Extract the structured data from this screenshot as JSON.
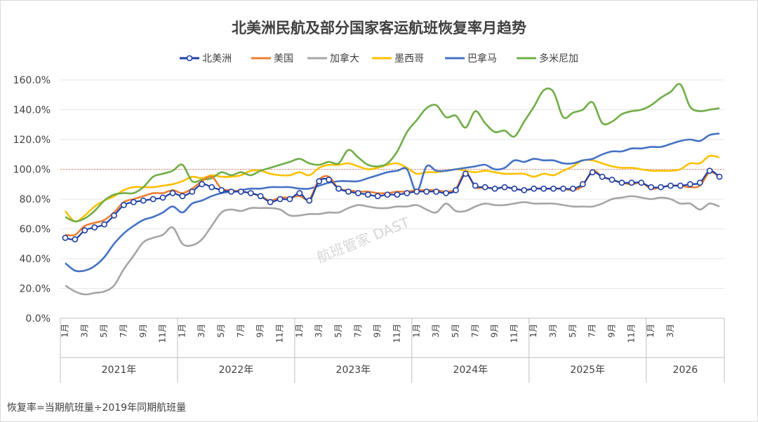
{
  "chart_data": {
    "type": "line",
    "title": "北美洲民航及部分国家客运航班恢复率月趋势",
    "footnote": "恢复率=当期航班量÷2019年同期航班量",
    "watermark": "航班管家 DAST",
    "y_ticks": [
      "160.0%",
      "140.0%",
      "120.0%",
      "100.0%",
      "80.0%",
      "60.0%",
      "40.0%",
      "20.0%",
      "0.0%"
    ],
    "ylim": [
      0,
      160
    ],
    "reference_line": 100,
    "month_labels": [
      "1月",
      "3月",
      "5月",
      "7月",
      "9月",
      "11月"
    ],
    "month_labels_2026": [
      "1月",
      "3月"
    ],
    "years": [
      "2021年",
      "2022年",
      "2023年",
      "2024年",
      "2025年",
      "2026"
    ],
    "series": [
      {
        "name": "北美洲",
        "color": "#1f3fa6",
        "markers": true,
        "values": [
          54,
          53,
          59,
          61,
          63,
          69,
          76,
          78,
          79,
          80,
          81,
          84,
          82,
          85,
          90,
          88,
          86,
          85,
          85,
          84,
          82,
          78,
          80,
          80,
          84,
          79,
          92,
          93,
          87,
          85,
          84,
          83,
          82,
          83,
          83,
          84,
          85,
          85,
          85,
          84,
          86,
          97,
          89,
          88,
          87,
          88,
          87,
          86,
          87,
          87,
          87,
          87,
          87,
          90,
          98,
          95,
          93,
          91,
          91,
          91,
          88,
          88,
          89,
          89,
          90,
          91,
          99,
          95
        ]
      },
      {
        "name": "美国",
        "color": "#ed7d31",
        "markers": false,
        "values": [
          56,
          56,
          62,
          64,
          66,
          71,
          78,
          80,
          82,
          84,
          84,
          86,
          84,
          87,
          92,
          95,
          87,
          86,
          85,
          84,
          82,
          79,
          81,
          81,
          82,
          80,
          93,
          95,
          87,
          86,
          85,
          85,
          84,
          84,
          85,
          85,
          86,
          86,
          86,
          85,
          87,
          98,
          88,
          88,
          87,
          88,
          87,
          86,
          87,
          87,
          87,
          87,
          86,
          89,
          99,
          95,
          93,
          91,
          90,
          91,
          87,
          88,
          89,
          89,
          88,
          89,
          98,
          95
        ]
      },
      {
        "name": "加拿大",
        "color": "#a5a5a5",
        "markers": false,
        "values": [
          22,
          18,
          16,
          17,
          18,
          22,
          33,
          42,
          51,
          54,
          56,
          61,
          50,
          49,
          53,
          62,
          71,
          73,
          72,
          74,
          74,
          74,
          73,
          69,
          69,
          70,
          70,
          71,
          71,
          74,
          76,
          75,
          74,
          74,
          75,
          75,
          76,
          73,
          71,
          77,
          72,
          72,
          75,
          77,
          76,
          76,
          77,
          78,
          77,
          77,
          77,
          76,
          75,
          75,
          75,
          77,
          80,
          81,
          82,
          81,
          80,
          81,
          80,
          77,
          77,
          73,
          77,
          75
        ]
      },
      {
        "name": "墨西哥",
        "color": "#ffc000",
        "markers": false,
        "values": [
          72,
          65,
          69,
          75,
          79,
          82,
          86,
          88,
          88,
          88,
          89,
          90,
          92,
          95,
          94,
          96,
          95,
          95,
          96,
          99,
          99,
          97,
          96,
          96,
          98,
          96,
          101,
          103,
          103,
          104,
          102,
          100,
          101,
          103,
          104,
          101,
          97,
          98,
          98,
          99,
          100,
          99,
          98,
          99,
          98,
          97,
          97,
          97,
          95,
          97,
          96,
          99,
          102,
          106,
          106,
          104,
          102,
          101,
          101,
          100,
          99,
          99,
          99,
          100,
          104,
          104,
          109,
          108
        ]
      },
      {
        "name": "巴拿马",
        "color": "#4472c4",
        "markers": false,
        "values": [
          37,
          32,
          32,
          35,
          41,
          50,
          57,
          62,
          66,
          68,
          71,
          75,
          71,
          77,
          79,
          82,
          84,
          85,
          86,
          87,
          87,
          88,
          88,
          88,
          87,
          87,
          89,
          91,
          92,
          92,
          92,
          94,
          96,
          98,
          99,
          100,
          85,
          102,
          99,
          99,
          100,
          101,
          102,
          103,
          100,
          101,
          106,
          105,
          107,
          106,
          106,
          104,
          104,
          106,
          107,
          110,
          112,
          112,
          114,
          114,
          115,
          115,
          117,
          119,
          120,
          119,
          123,
          124
        ]
      },
      {
        "name": "多米尼加",
        "color": "#70ad47",
        "markers": false,
        "values": [
          68,
          65,
          67,
          72,
          79,
          83,
          84,
          84,
          88,
          95,
          97,
          99,
          103,
          92,
          93,
          94,
          98,
          96,
          98,
          96,
          99,
          101,
          103,
          105,
          107,
          104,
          103,
          105,
          104,
          113,
          108,
          103,
          102,
          104,
          112,
          125,
          133,
          141,
          143,
          135,
          136,
          128,
          139,
          131,
          125,
          126,
          122,
          132,
          142,
          153,
          152,
          135,
          138,
          140,
          145,
          131,
          132,
          137,
          139,
          140,
          143,
          148,
          152,
          157,
          142,
          139,
          140,
          141
        ]
      }
    ]
  }
}
